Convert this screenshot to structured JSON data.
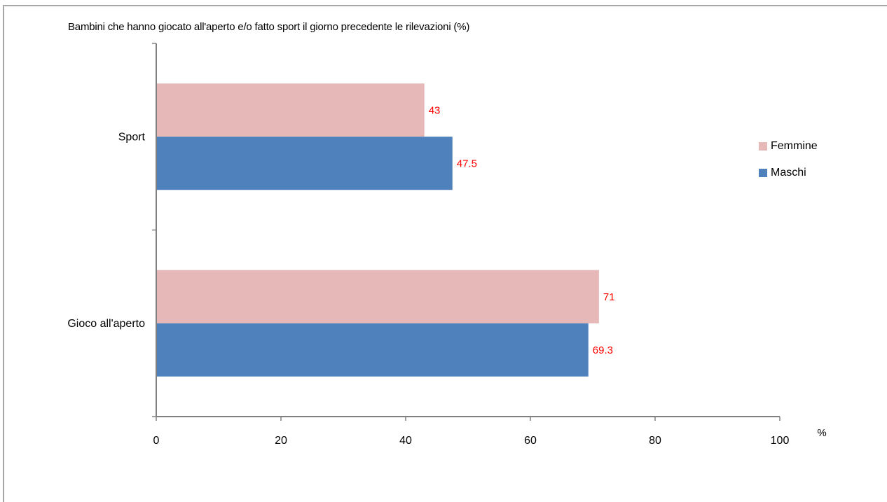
{
  "chart_data": {
    "type": "bar",
    "orientation": "horizontal",
    "title": "Bambini  che hanno giocato all'aperto e/o fatto sport il giorno precedente le rilevazioni (%)",
    "xlabel": "%",
    "ylabel": "",
    "xlim": [
      0,
      100
    ],
    "x_ticks": [
      "0",
      "20",
      "40",
      "60",
      "80",
      "100"
    ],
    "categories": [
      "Sport",
      "Gioco all'aperto"
    ],
    "series": [
      {
        "name": "Femmine",
        "values": [
          43,
          71
        ],
        "labels": [
          "43",
          "71"
        ],
        "color": "#e6b9b8"
      },
      {
        "name": "Maschi",
        "values": [
          47.5,
          69.3
        ],
        "labels": [
          "47.5",
          "69.3"
        ],
        "color": "#4f81bd"
      }
    ],
    "data_label_color": "#ff0000",
    "legend_position": "right",
    "grid": false
  }
}
